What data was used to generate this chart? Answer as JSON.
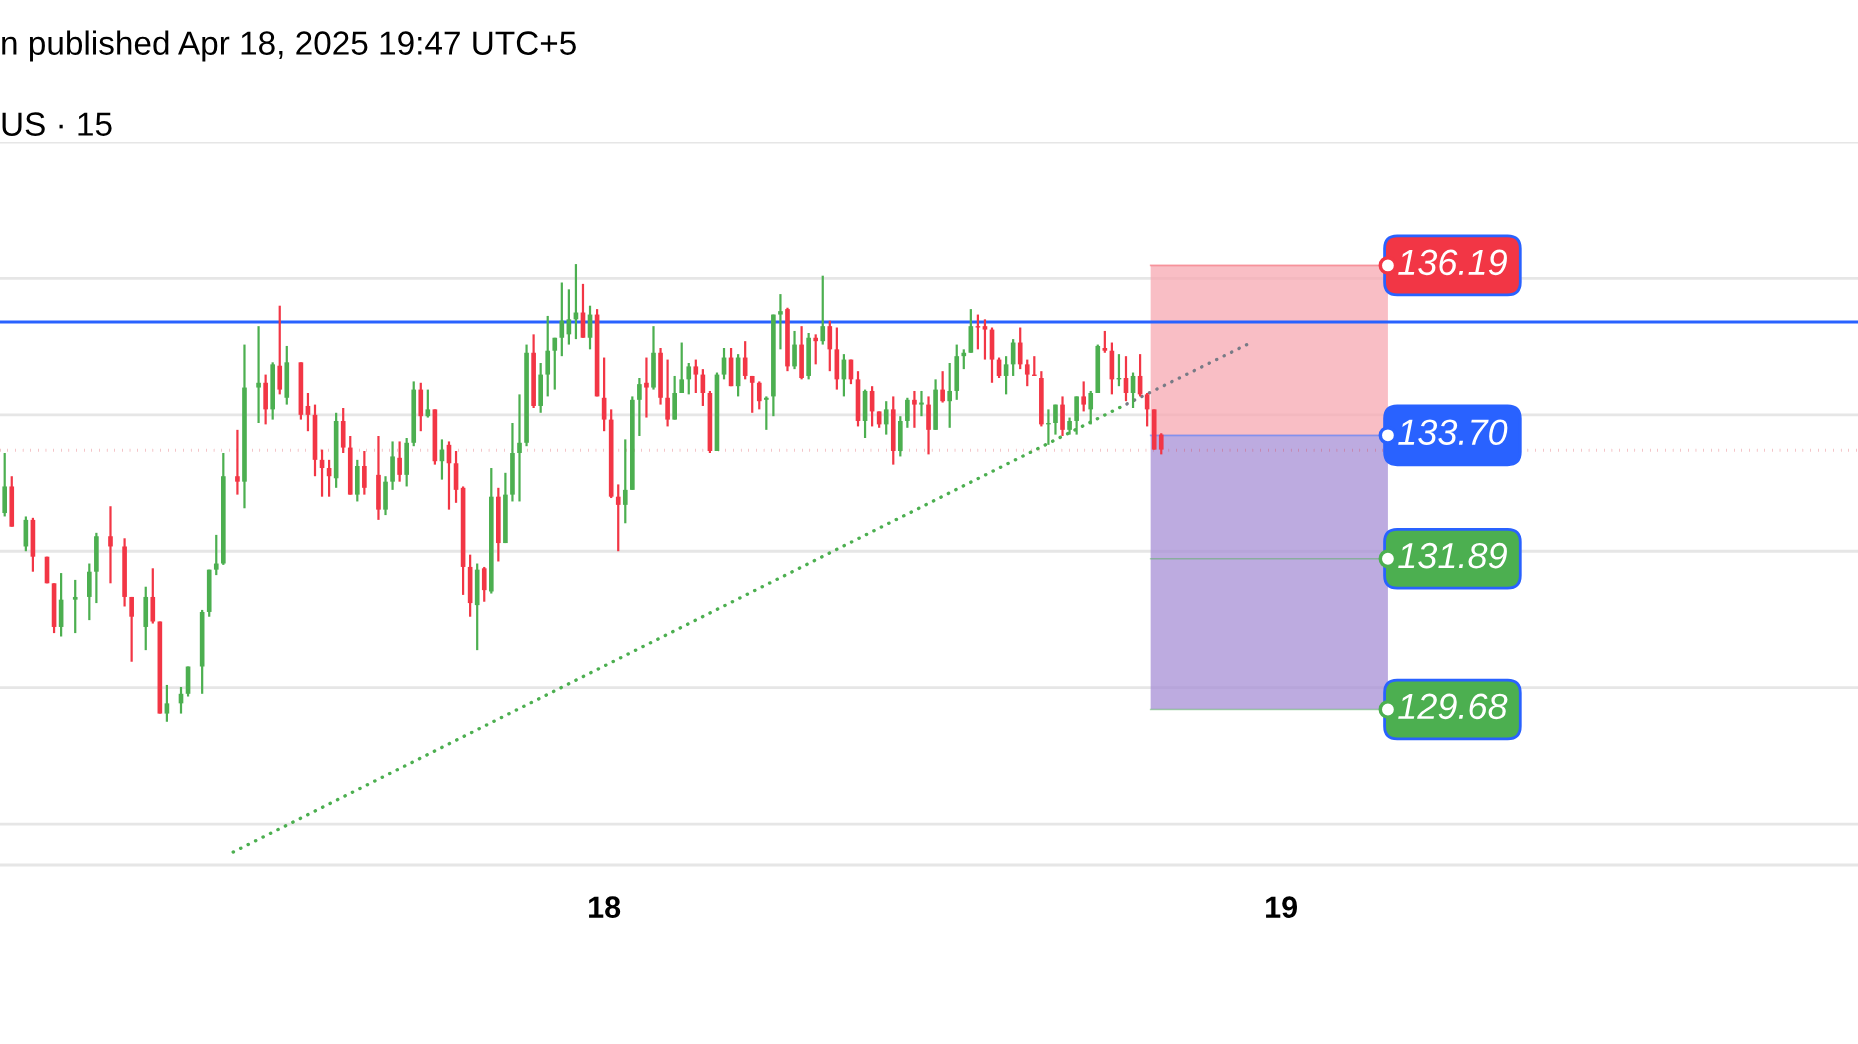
{
  "chart_data": {
    "type": "candlestick",
    "title": "n published Apr 18, 2025 19:47 UTC+5",
    "subtitle": "US · 15",
    "xlim": [
      "2025-04-17T02:35",
      "2025-04-19T20:27"
    ],
    "xticks": [
      {
        "value": "2025-04-18",
        "label": "18"
      },
      {
        "value": "2025-04-19",
        "label": "19"
      }
    ],
    "ylim": [
      127.4,
      138
    ],
    "yticks": [
      128,
      130,
      132,
      134,
      136,
      138
    ],
    "tick_labels": "x",
    "grid": "y",
    "series": [
      {
        "color": "#4caf50",
        "x": [
          "2025-04-17T02:45",
          "2025-04-17T03:30",
          "2025-04-17T04:45",
          "2025-04-17T05:15",
          "2025-04-17T05:45",
          "2025-04-17T06:00",
          "2025-04-17T07:45",
          "2025-04-17T08:30",
          "2025-04-17T09:00",
          "2025-04-17T09:15",
          "2025-04-17T09:45",
          "2025-04-17T10:00",
          "2025-04-17T10:15",
          "2025-04-17T10:30",
          "2025-04-17T11:15",
          "2025-04-17T11:45",
          "2025-04-17T12:15",
          "2025-04-17T12:45",
          "2025-04-17T14:30",
          "2025-04-17T15:15",
          "2025-04-17T16:15",
          "2025-04-17T16:30",
          "2025-04-17T17:00",
          "2025-04-17T17:15",
          "2025-04-17T17:45",
          "2025-04-17T18:15",
          "2025-04-17T19:30",
          "2025-04-17T20:00",
          "2025-04-17T20:30",
          "2025-04-17T20:45",
          "2025-04-17T21:00",
          "2025-04-17T21:15",
          "2025-04-17T21:45",
          "2025-04-17T22:00",
          "2025-04-17T22:15",
          "2025-04-17T22:30",
          "2025-04-17T22:45",
          "2025-04-17T23:00",
          "2025-04-17T23:30",
          "2025-04-18T00:45",
          "2025-04-18T01:00",
          "2025-04-18T01:15",
          "2025-04-18T01:45",
          "2025-04-18T02:30",
          "2025-04-18T02:45",
          "2025-04-18T03:00",
          "2025-04-18T04:00",
          "2025-04-18T04:15",
          "2025-04-18T04:45",
          "2025-04-18T05:45",
          "2025-04-18T06:00",
          "2025-04-18T06:15",
          "2025-04-18T06:45",
          "2025-04-18T07:15",
          "2025-04-18T07:45",
          "2025-04-18T08:30",
          "2025-04-18T09:15",
          "2025-04-18T10:00",
          "2025-04-18T10:30",
          "2025-04-18T10:45",
          "2025-04-18T11:15",
          "2025-04-18T11:45",
          "2025-04-18T12:15",
          "2025-04-18T12:30",
          "2025-04-18T12:45",
          "2025-04-18T13:00",
          "2025-04-18T14:15",
          "2025-04-18T14:30",
          "2025-04-18T15:45",
          "2025-04-18T16:00",
          "2025-04-18T16:30",
          "2025-04-18T16:45",
          "2025-04-18T17:15",
          "2025-04-18T17:30",
          "2025-04-18T18:15",
          "2025-04-18T18:45"
        ],
        "ohlc": [
          [
            132.56,
            133.44,
            132.51,
            132.95
          ],
          [
            132.07,
            132.51,
            132.0,
            132.46
          ],
          [
            130.89,
            131.68,
            130.75,
            131.29
          ],
          [
            131.29,
            131.58,
            130.8,
            131.33
          ],
          [
            131.33,
            131.82,
            130.99,
            131.7
          ],
          [
            131.7,
            132.27,
            131.24,
            132.22
          ],
          [
            130.89,
            131.48,
            130.55,
            131.33
          ],
          [
            129.62,
            130.04,
            129.5,
            129.77
          ],
          [
            129.77,
            130.01,
            129.62,
            129.91
          ],
          [
            129.91,
            130.31,
            129.87,
            130.31
          ],
          [
            130.31,
            131.14,
            129.91,
            131.11
          ],
          [
            131.11,
            131.73,
            131.04,
            131.73
          ],
          [
            131.73,
            132.24,
            131.65,
            131.82
          ],
          [
            131.82,
            133.44,
            131.8,
            133.1
          ],
          [
            133.02,
            135.03,
            132.63,
            134.4
          ],
          [
            134.4,
            135.3,
            133.88,
            134.47
          ],
          [
            134.08,
            134.77,
            133.93,
            134.74
          ],
          [
            134.25,
            135.01,
            134.15,
            134.77
          ],
          [
            133.07,
            134.03,
            132.93,
            133.91
          ],
          [
            132.83,
            133.34,
            132.73,
            133.25
          ],
          [
            132.61,
            133.1,
            132.53,
            133.02
          ],
          [
            133.02,
            133.61,
            132.9,
            133.39
          ],
          [
            133.12,
            133.66,
            132.95,
            133.59
          ],
          [
            133.59,
            134.49,
            133.54,
            134.37
          ],
          [
            133.98,
            134.37,
            133.96,
            134.08
          ],
          [
            133.32,
            133.64,
            133.05,
            133.49
          ],
          [
            131.21,
            131.82,
            130.55,
            131.73
          ],
          [
            131.41,
            133.22,
            131.38,
            132.8
          ],
          [
            132.12,
            133.15,
            132.12,
            132.83
          ],
          [
            132.83,
            133.88,
            132.73,
            133.44
          ],
          [
            133.44,
            134.3,
            132.73,
            133.59
          ],
          [
            133.59,
            135.03,
            133.54,
            134.91
          ],
          [
            134.13,
            134.76,
            134.03,
            134.59
          ],
          [
            134.59,
            135.45,
            134.27,
            134.94
          ],
          [
            134.94,
            135.13,
            134.37,
            135.13
          ],
          [
            135.13,
            135.94,
            134.86,
            135.38
          ],
          [
            135.18,
            135.84,
            135.03,
            135.4
          ],
          [
            135.4,
            136.21,
            135.11,
            135.5
          ],
          [
            135.13,
            135.6,
            134.96,
            135.47
          ],
          [
            132.68,
            133.64,
            132.41,
            132.9
          ],
          [
            132.9,
            134.27,
            132.9,
            134.22
          ],
          [
            134.22,
            134.54,
            133.69,
            134.45
          ],
          [
            134.4,
            135.3,
            134.37,
            134.91
          ],
          [
            133.93,
            134.57,
            133.93,
            134.32
          ],
          [
            134.32,
            135.06,
            134.32,
            134.52
          ],
          [
            134.52,
            134.76,
            134.3,
            134.71
          ],
          [
            133.47,
            134.62,
            133.47,
            134.59
          ],
          [
            134.59,
            134.98,
            134.52,
            134.84
          ],
          [
            134.42,
            134.89,
            134.27,
            134.84
          ],
          [
            134.22,
            134.27,
            133.78,
            134.25
          ],
          [
            134.27,
            135.47,
            133.98,
            135.47
          ],
          [
            135.47,
            135.77,
            134.96,
            135.52
          ],
          [
            134.71,
            135.23,
            134.67,
            135.03
          ],
          [
            134.57,
            135.2,
            134.52,
            135.13
          ],
          [
            135.08,
            136.04,
            135.03,
            135.3
          ],
          [
            134.52,
            134.89,
            134.27,
            134.81
          ],
          [
            133.91,
            134.37,
            133.66,
            134.35
          ],
          [
            133.86,
            134.2,
            133.71,
            134.08
          ],
          [
            133.47,
            133.98,
            133.39,
            133.91
          ],
          [
            133.91,
            134.25,
            133.81,
            134.22
          ],
          [
            134.15,
            134.35,
            133.98,
            134.18
          ],
          [
            133.78,
            134.52,
            133.78,
            134.37
          ],
          [
            134.2,
            134.76,
            133.81,
            134.35
          ],
          [
            134.35,
            135.03,
            134.22,
            134.86
          ],
          [
            134.86,
            134.96,
            134.67,
            134.91
          ],
          [
            134.91,
            135.55,
            134.91,
            135.3
          ],
          [
            134.57,
            134.86,
            134.3,
            134.74
          ],
          [
            134.74,
            135.11,
            134.57,
            135.06
          ],
          [
            133.86,
            134.08,
            133.56,
            133.88
          ],
          [
            133.88,
            134.15,
            133.71,
            134.15
          ],
          [
            133.78,
            133.96,
            133.71,
            133.91
          ],
          [
            133.91,
            134.27,
            133.71,
            134.27
          ],
          [
            134.08,
            134.35,
            133.86,
            134.32
          ],
          [
            134.32,
            135.03,
            134.32,
            135.01
          ],
          [
            134.52,
            134.89,
            134.42,
            134.54
          ],
          [
            134.32,
            134.62,
            134.1,
            134.57
          ]
        ]
      },
      {
        "color": "#f23645",
        "x": [
          "2025-04-17T03:00",
          "2025-04-17T03:45",
          "2025-04-17T04:15",
          "2025-04-17T04:30",
          "2025-04-17T06:30",
          "2025-04-17T07:00",
          "2025-04-17T07:15",
          "2025-04-17T08:00",
          "2025-04-17T08:15",
          "2025-04-17T11:00",
          "2025-04-17T12:00",
          "2025-04-17T12:30",
          "2025-04-17T13:15",
          "2025-04-17T13:30",
          "2025-04-17T13:45",
          "2025-04-17T14:00",
          "2025-04-17T14:15",
          "2025-04-17T14:45",
          "2025-04-17T15:00",
          "2025-04-17T15:30",
          "2025-04-17T16:00",
          "2025-04-17T16:45",
          "2025-04-17T17:30",
          "2025-04-17T18:00",
          "2025-04-17T18:30",
          "2025-04-17T18:45",
          "2025-04-17T19:00",
          "2025-04-17T19:15",
          "2025-04-17T19:45",
          "2025-04-17T20:15",
          "2025-04-17T21:30",
          "2025-04-17T23:15",
          "2025-04-17T23:45",
          "2025-04-18T00:00",
          "2025-04-18T00:15",
          "2025-04-18T00:30",
          "2025-04-18T01:30",
          "2025-04-18T02:00",
          "2025-04-18T02:15",
          "2025-04-18T03:15",
          "2025-04-18T03:30",
          "2025-04-18T03:45",
          "2025-04-18T04:30",
          "2025-04-18T05:00",
          "2025-04-18T05:15",
          "2025-04-18T05:30",
          "2025-04-18T06:30",
          "2025-04-18T07:00",
          "2025-04-18T07:30",
          "2025-04-18T08:00",
          "2025-04-18T08:15",
          "2025-04-18T08:45",
          "2025-04-18T09:00",
          "2025-04-18T09:30",
          "2025-04-18T09:45",
          "2025-04-18T10:15",
          "2025-04-18T11:00",
          "2025-04-18T11:30",
          "2025-04-18T12:00",
          "2025-04-18T13:15",
          "2025-04-18T13:30",
          "2025-04-18T13:45",
          "2025-04-18T14:00",
          "2025-04-18T14:45",
          "2025-04-18T15:00",
          "2025-04-18T15:15",
          "2025-04-18T15:30",
          "2025-04-18T16:15",
          "2025-04-18T17:00",
          "2025-04-18T17:45",
          "2025-04-18T18:00",
          "2025-04-18T18:30",
          "2025-04-18T19:00",
          "2025-04-18T19:15",
          "2025-04-18T19:30",
          "2025-04-18T19:45"
        ],
        "ohlc": [
          [
            132.95,
            133.1,
            132.36,
            132.36
          ],
          [
            132.46,
            132.49,
            131.7,
            131.92
          ],
          [
            131.92,
            131.92,
            131.53,
            131.53
          ],
          [
            131.53,
            131.53,
            130.8,
            130.89
          ],
          [
            132.22,
            132.66,
            131.53,
            132.07
          ],
          [
            132.07,
            132.19,
            131.19,
            131.33
          ],
          [
            131.33,
            131.33,
            130.38,
            131.04
          ],
          [
            131.33,
            131.75,
            130.94,
            130.97
          ],
          [
            130.97,
            130.97,
            129.62,
            129.62
          ],
          [
            133.1,
            133.78,
            132.83,
            133.02
          ],
          [
            134.47,
            134.59,
            133.86,
            134.08
          ],
          [
            134.72,
            135.6,
            134.3,
            134.37
          ],
          [
            134.77,
            134.77,
            133.93,
            134.0
          ],
          [
            134.13,
            134.32,
            133.76,
            134.0
          ],
          [
            134.0,
            134.15,
            133.1,
            133.34
          ],
          [
            133.34,
            133.49,
            132.8,
            133.22
          ],
          [
            133.22,
            133.34,
            132.8,
            133.1
          ],
          [
            133.91,
            134.1,
            133.44,
            133.52
          ],
          [
            133.52,
            133.69,
            132.83,
            132.83
          ],
          [
            133.25,
            133.47,
            132.83,
            132.93
          ],
          [
            133.12,
            133.69,
            132.46,
            132.61
          ],
          [
            133.37,
            133.61,
            133.02,
            133.12
          ],
          [
            134.37,
            134.47,
            133.76,
            133.98
          ],
          [
            134.08,
            134.08,
            133.27,
            133.32
          ],
          [
            133.56,
            133.61,
            132.61,
            133.29
          ],
          [
            133.29,
            133.47,
            132.71,
            132.9
          ],
          [
            132.93,
            132.95,
            131.36,
            131.77
          ],
          [
            131.77,
            131.95,
            131.04,
            131.24
          ],
          [
            131.75,
            131.77,
            131.26,
            131.43
          ],
          [
            132.8,
            132.93,
            131.85,
            132.12
          ],
          [
            134.91,
            135.18,
            134.1,
            134.13
          ],
          [
            135.5,
            135.92,
            135.13,
            135.13
          ],
          [
            135.47,
            135.55,
            134.27,
            134.27
          ],
          [
            134.25,
            134.84,
            133.76,
            133.93
          ],
          [
            133.93,
            134.08,
            132.78,
            132.8
          ],
          [
            132.8,
            132.98,
            132.0,
            132.68
          ],
          [
            134.47,
            134.84,
            133.96,
            134.4
          ],
          [
            134.91,
            134.98,
            134.15,
            134.25
          ],
          [
            134.25,
            134.81,
            133.83,
            133.93
          ],
          [
            134.71,
            134.81,
            134.32,
            134.59
          ],
          [
            134.59,
            134.67,
            134.13,
            134.32
          ],
          [
            134.32,
            134.35,
            133.44,
            133.47
          ],
          [
            134.84,
            134.98,
            134.42,
            134.42
          ],
          [
            134.84,
            135.08,
            134.52,
            134.57
          ],
          [
            134.57,
            134.57,
            134.03,
            134.47
          ],
          [
            134.47,
            134.49,
            134.08,
            134.2
          ],
          [
            135.55,
            135.57,
            134.64,
            134.71
          ],
          [
            135.03,
            135.3,
            134.52,
            134.54
          ],
          [
            135.13,
            135.18,
            134.74,
            135.08
          ],
          [
            135.3,
            135.38,
            134.64,
            134.96
          ],
          [
            134.96,
            135.28,
            134.37,
            134.52
          ],
          [
            134.81,
            134.81,
            134.45,
            134.52
          ],
          [
            134.52,
            134.64,
            133.83,
            133.91
          ],
          [
            134.35,
            134.42,
            133.83,
            134.05
          ],
          [
            134.05,
            134.05,
            133.81,
            133.86
          ],
          [
            134.08,
            134.27,
            133.27,
            133.47
          ],
          [
            134.22,
            134.35,
            133.81,
            134.15
          ],
          [
            134.15,
            134.27,
            133.42,
            133.78
          ],
          [
            134.37,
            134.64,
            134.18,
            134.2
          ],
          [
            135.3,
            135.47,
            134.96,
            135.28
          ],
          [
            135.3,
            135.4,
            134.81,
            135.25
          ],
          [
            135.25,
            135.28,
            134.47,
            134.81
          ],
          [
            134.81,
            134.84,
            134.54,
            134.57
          ],
          [
            135.06,
            135.28,
            134.67,
            134.74
          ],
          [
            134.74,
            134.81,
            134.42,
            134.59
          ],
          [
            134.59,
            134.86,
            134.57,
            134.57
          ],
          [
            134.54,
            134.64,
            133.83,
            133.86
          ],
          [
            134.15,
            134.27,
            133.69,
            133.78
          ],
          [
            134.27,
            134.49,
            134.05,
            134.15
          ],
          [
            134.98,
            135.23,
            134.91,
            134.94
          ],
          [
            134.94,
            135.06,
            134.3,
            134.52
          ],
          [
            134.54,
            134.86,
            134.2,
            134.32
          ],
          [
            134.57,
            134.89,
            134.27,
            134.3
          ],
          [
            134.3,
            134.32,
            133.83,
            134.08
          ],
          [
            134.08,
            134.08,
            133.49,
            133.49
          ],
          [
            133.71,
            133.73,
            133.42,
            133.49
          ]
        ]
      },
      {
        "type": "line",
        "color": "#4caf50",
        "line_style": "dotted",
        "x": [
          "2025-04-17T10:51",
          "2025-04-18T18:32"
        ],
        "values": [
          127.59,
          134.16
        ]
      },
      {
        "type": "line",
        "color": "#787b86",
        "line_style": "dotted",
        "x": [
          "2025-04-18T18:32",
          "2025-04-18T22:50"
        ],
        "values": [
          134.16,
          135.04
        ]
      }
    ],
    "ref_lines": [
      {
        "axis": "y",
        "value": 135.36,
        "color": "#2962ff",
        "line_style": "solid"
      },
      {
        "axis": "y",
        "value": 133.48,
        "color": "#d9414b",
        "line_style": "dotted"
      },
      {
        "axis": "y",
        "value": 136.19,
        "label": "136.19",
        "color": "#f23645"
      },
      {
        "axis": "y",
        "value": 133.7,
        "label": "133.70",
        "color": "#2962ff"
      },
      {
        "axis": "y",
        "value": 131.89,
        "label": "131.89",
        "color": "#4caf50"
      },
      {
        "axis": "y",
        "value": 129.68,
        "label": "129.68",
        "color": "#4caf50"
      }
    ],
    "bands": [
      {
        "axis": "y",
        "from": 133.7,
        "to": 136.19,
        "color": "#f7a8b1"
      },
      {
        "axis": "y",
        "from": 129.68,
        "to": 133.7,
        "color": "#a78fd6"
      }
    ]
  }
}
